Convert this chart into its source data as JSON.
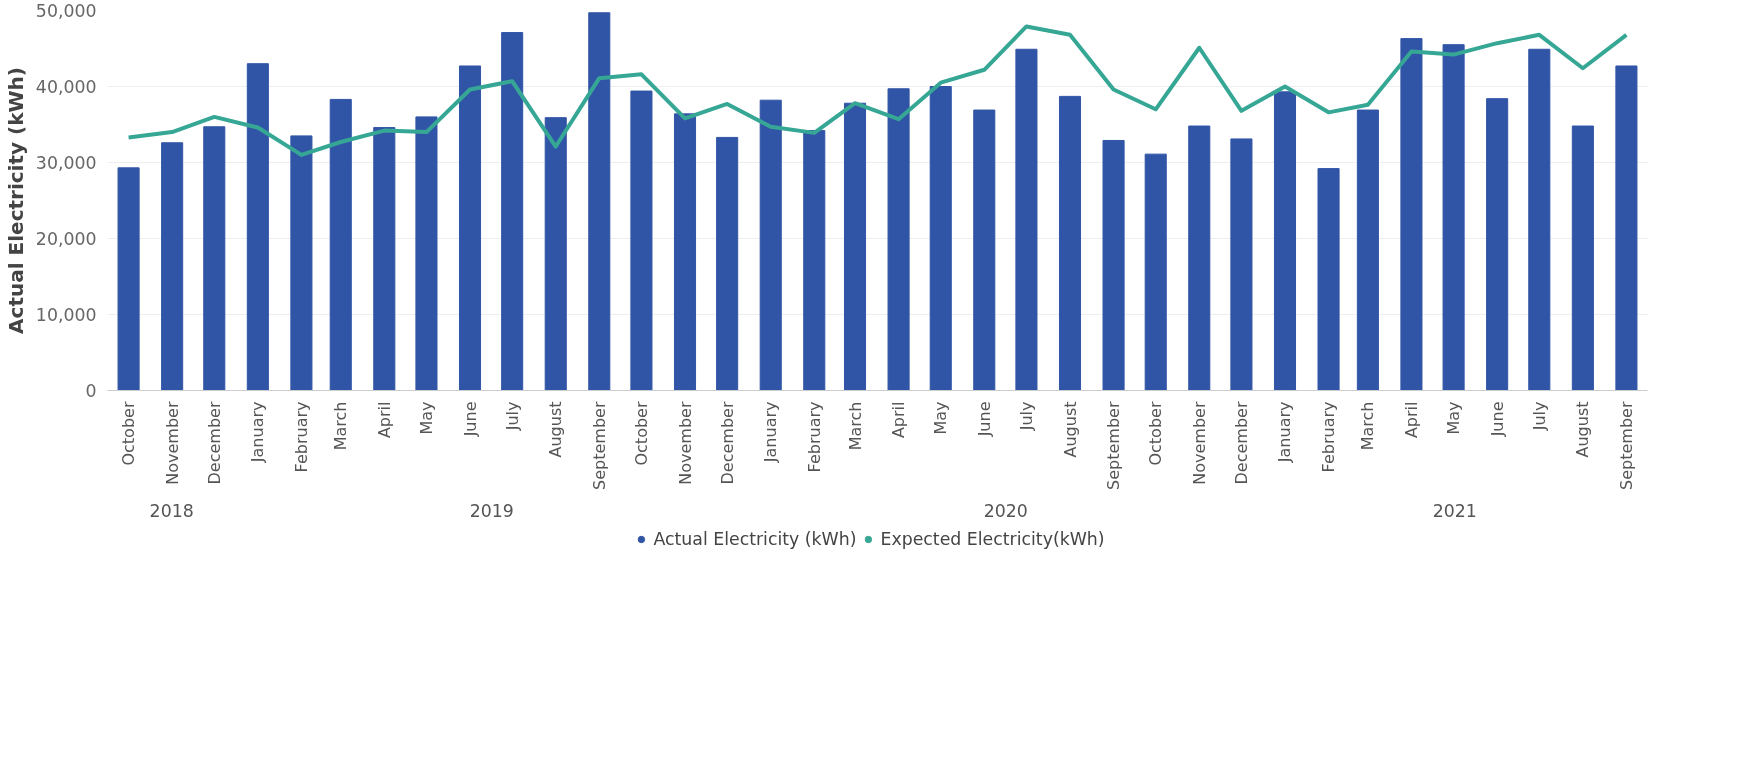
{
  "chart_data": {
    "type": "bar",
    "ylabel": "Actual Electricity (kWh)",
    "x": [
      "2018-10",
      "2018-11",
      "2018-12",
      "2019-01",
      "2019-02",
      "2019-03",
      "2019-04",
      "2019-05",
      "2019-06",
      "2019-07",
      "2019-08",
      "2019-09",
      "2019-10",
      "2019-11",
      "2019-12",
      "2020-01",
      "2020-02",
      "2020-03",
      "2020-04",
      "2020-05",
      "2020-06",
      "2020-07",
      "2020-08",
      "2020-09",
      "2020-10",
      "2020-11",
      "2020-12",
      "2021-01",
      "2021-02",
      "2021-03",
      "2021-04",
      "2021-05",
      "2021-06",
      "2021-07",
      "2021-08",
      "2021-09"
    ],
    "xlim": [
      "2018-09-16",
      "2021-09-16"
    ],
    "xticks": [
      {
        "value": "2018-10",
        "label": "October"
      },
      {
        "value": "2018-11",
        "label": "November"
      },
      {
        "value": "2018-12",
        "label": "December"
      },
      {
        "value": "2019-01",
        "label": "January"
      },
      {
        "value": "2019-02",
        "label": "February"
      },
      {
        "value": "2019-03",
        "label": "March"
      },
      {
        "value": "2019-04",
        "label": "April"
      },
      {
        "value": "2019-05",
        "label": "May"
      },
      {
        "value": "2019-06",
        "label": "June"
      },
      {
        "value": "2019-07",
        "label": "July"
      },
      {
        "value": "2019-08",
        "label": "August"
      },
      {
        "value": "2019-09",
        "label": "September"
      },
      {
        "value": "2019-10",
        "label": "October"
      },
      {
        "value": "2019-11",
        "label": "November"
      },
      {
        "value": "2019-12",
        "label": "December"
      },
      {
        "value": "2020-01",
        "label": "January"
      },
      {
        "value": "2020-02",
        "label": "February"
      },
      {
        "value": "2020-03",
        "label": "March"
      },
      {
        "value": "2020-04",
        "label": "April"
      },
      {
        "value": "2020-05",
        "label": "May"
      },
      {
        "value": "2020-06",
        "label": "June"
      },
      {
        "value": "2020-07",
        "label": "July"
      },
      {
        "value": "2020-08",
        "label": "August"
      },
      {
        "value": "2020-09",
        "label": "September"
      },
      {
        "value": "2020-10",
        "label": "October"
      },
      {
        "value": "2020-11",
        "label": "November"
      },
      {
        "value": "2020-12",
        "label": "December"
      },
      {
        "value": "2021-01",
        "label": "January"
      },
      {
        "value": "2021-02",
        "label": "February"
      },
      {
        "value": "2021-03",
        "label": "March"
      },
      {
        "value": "2021-04",
        "label": "April"
      },
      {
        "value": "2021-05",
        "label": "May"
      },
      {
        "value": "2021-06",
        "label": "June"
      },
      {
        "value": "2021-07",
        "label": "July"
      },
      {
        "value": "2021-08",
        "label": "August"
      },
      {
        "value": "2021-09",
        "label": "September"
      }
    ],
    "annotations": [
      "2018",
      "2019",
      "2020",
      "2021"
    ],
    "series": [
      {
        "name": "Actual Electricity (kWh)",
        "color": "#3155a6",
        "values": [
          29300,
          32600,
          34700,
          43000,
          33500,
          38300,
          34600,
          36000,
          42700,
          47100,
          35900,
          49700,
          39400,
          36400,
          33300,
          38200,
          34200,
          37800,
          39700,
          40000,
          36900,
          44900,
          38700,
          32900,
          31100,
          34800,
          33100,
          39300,
          29200,
          36900,
          46300,
          45500,
          38400,
          44900,
          34800,
          42700
        ]
      },
      {
        "name": "Expected Electricity(kWh)",
        "type": "line",
        "color": "#37a795",
        "values": [
          33300,
          34000,
          36000,
          34600,
          31000,
          32700,
          34200,
          34000,
          39600,
          40700,
          32100,
          41100,
          41600,
          35800,
          37700,
          34700,
          33900,
          37800,
          35700,
          40500,
          42200,
          47900,
          46800,
          39600,
          37000,
          45100,
          36800,
          40000,
          36600,
          37600,
          44600,
          44200,
          45700,
          46800,
          42400,
          46800
        ]
      }
    ],
    "ylim": [
      0,
      50000
    ],
    "yticks": [
      {
        "value": 0,
        "label": "0"
      },
      {
        "value": 10000,
        "label": "10,000"
      },
      {
        "value": 20000,
        "label": "20,000"
      },
      {
        "value": 30000,
        "label": "30,000"
      },
      {
        "value": 40000,
        "label": "40,000"
      },
      {
        "value": 50000,
        "label": "50,000"
      }
    ],
    "grid": "y",
    "legend": "bottom",
    "line_style": "solid"
  }
}
